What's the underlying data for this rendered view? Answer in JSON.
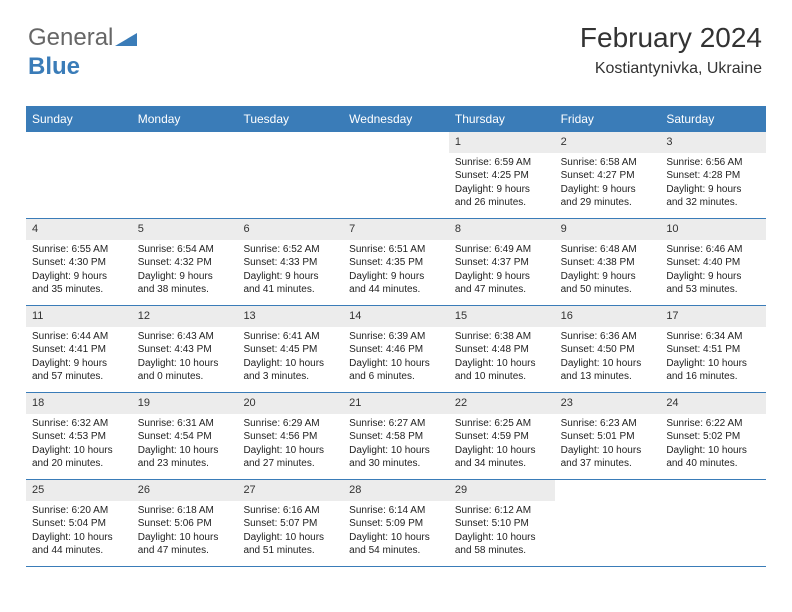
{
  "logo": {
    "text1": "General",
    "text2": "Blue"
  },
  "title": "February 2024",
  "location": "Kostiantynivka, Ukraine",
  "colors": {
    "header_bg": "#3a7cb8",
    "header_text": "#ffffff",
    "daynum_bg": "#ececec",
    "border": "#3a7cb8",
    "text": "#222222",
    "page_bg": "#ffffff"
  },
  "day_names": [
    "Sunday",
    "Monday",
    "Tuesday",
    "Wednesday",
    "Thursday",
    "Friday",
    "Saturday"
  ],
  "weeks": [
    [
      null,
      null,
      null,
      null,
      {
        "n": "1",
        "sr": "Sunrise: 6:59 AM",
        "ss": "Sunset: 4:25 PM",
        "d1": "Daylight: 9 hours",
        "d2": "and 26 minutes."
      },
      {
        "n": "2",
        "sr": "Sunrise: 6:58 AM",
        "ss": "Sunset: 4:27 PM",
        "d1": "Daylight: 9 hours",
        "d2": "and 29 minutes."
      },
      {
        "n": "3",
        "sr": "Sunrise: 6:56 AM",
        "ss": "Sunset: 4:28 PM",
        "d1": "Daylight: 9 hours",
        "d2": "and 32 minutes."
      }
    ],
    [
      {
        "n": "4",
        "sr": "Sunrise: 6:55 AM",
        "ss": "Sunset: 4:30 PM",
        "d1": "Daylight: 9 hours",
        "d2": "and 35 minutes."
      },
      {
        "n": "5",
        "sr": "Sunrise: 6:54 AM",
        "ss": "Sunset: 4:32 PM",
        "d1": "Daylight: 9 hours",
        "d2": "and 38 minutes."
      },
      {
        "n": "6",
        "sr": "Sunrise: 6:52 AM",
        "ss": "Sunset: 4:33 PM",
        "d1": "Daylight: 9 hours",
        "d2": "and 41 minutes."
      },
      {
        "n": "7",
        "sr": "Sunrise: 6:51 AM",
        "ss": "Sunset: 4:35 PM",
        "d1": "Daylight: 9 hours",
        "d2": "and 44 minutes."
      },
      {
        "n": "8",
        "sr": "Sunrise: 6:49 AM",
        "ss": "Sunset: 4:37 PM",
        "d1": "Daylight: 9 hours",
        "d2": "and 47 minutes."
      },
      {
        "n": "9",
        "sr": "Sunrise: 6:48 AM",
        "ss": "Sunset: 4:38 PM",
        "d1": "Daylight: 9 hours",
        "d2": "and 50 minutes."
      },
      {
        "n": "10",
        "sr": "Sunrise: 6:46 AM",
        "ss": "Sunset: 4:40 PM",
        "d1": "Daylight: 9 hours",
        "d2": "and 53 minutes."
      }
    ],
    [
      {
        "n": "11",
        "sr": "Sunrise: 6:44 AM",
        "ss": "Sunset: 4:41 PM",
        "d1": "Daylight: 9 hours",
        "d2": "and 57 minutes."
      },
      {
        "n": "12",
        "sr": "Sunrise: 6:43 AM",
        "ss": "Sunset: 4:43 PM",
        "d1": "Daylight: 10 hours",
        "d2": "and 0 minutes."
      },
      {
        "n": "13",
        "sr": "Sunrise: 6:41 AM",
        "ss": "Sunset: 4:45 PM",
        "d1": "Daylight: 10 hours",
        "d2": "and 3 minutes."
      },
      {
        "n": "14",
        "sr": "Sunrise: 6:39 AM",
        "ss": "Sunset: 4:46 PM",
        "d1": "Daylight: 10 hours",
        "d2": "and 6 minutes."
      },
      {
        "n": "15",
        "sr": "Sunrise: 6:38 AM",
        "ss": "Sunset: 4:48 PM",
        "d1": "Daylight: 10 hours",
        "d2": "and 10 minutes."
      },
      {
        "n": "16",
        "sr": "Sunrise: 6:36 AM",
        "ss": "Sunset: 4:50 PM",
        "d1": "Daylight: 10 hours",
        "d2": "and 13 minutes."
      },
      {
        "n": "17",
        "sr": "Sunrise: 6:34 AM",
        "ss": "Sunset: 4:51 PM",
        "d1": "Daylight: 10 hours",
        "d2": "and 16 minutes."
      }
    ],
    [
      {
        "n": "18",
        "sr": "Sunrise: 6:32 AM",
        "ss": "Sunset: 4:53 PM",
        "d1": "Daylight: 10 hours",
        "d2": "and 20 minutes."
      },
      {
        "n": "19",
        "sr": "Sunrise: 6:31 AM",
        "ss": "Sunset: 4:54 PM",
        "d1": "Daylight: 10 hours",
        "d2": "and 23 minutes."
      },
      {
        "n": "20",
        "sr": "Sunrise: 6:29 AM",
        "ss": "Sunset: 4:56 PM",
        "d1": "Daylight: 10 hours",
        "d2": "and 27 minutes."
      },
      {
        "n": "21",
        "sr": "Sunrise: 6:27 AM",
        "ss": "Sunset: 4:58 PM",
        "d1": "Daylight: 10 hours",
        "d2": "and 30 minutes."
      },
      {
        "n": "22",
        "sr": "Sunrise: 6:25 AM",
        "ss": "Sunset: 4:59 PM",
        "d1": "Daylight: 10 hours",
        "d2": "and 34 minutes."
      },
      {
        "n": "23",
        "sr": "Sunrise: 6:23 AM",
        "ss": "Sunset: 5:01 PM",
        "d1": "Daylight: 10 hours",
        "d2": "and 37 minutes."
      },
      {
        "n": "24",
        "sr": "Sunrise: 6:22 AM",
        "ss": "Sunset: 5:02 PM",
        "d1": "Daylight: 10 hours",
        "d2": "and 40 minutes."
      }
    ],
    [
      {
        "n": "25",
        "sr": "Sunrise: 6:20 AM",
        "ss": "Sunset: 5:04 PM",
        "d1": "Daylight: 10 hours",
        "d2": "and 44 minutes."
      },
      {
        "n": "26",
        "sr": "Sunrise: 6:18 AM",
        "ss": "Sunset: 5:06 PM",
        "d1": "Daylight: 10 hours",
        "d2": "and 47 minutes."
      },
      {
        "n": "27",
        "sr": "Sunrise: 6:16 AM",
        "ss": "Sunset: 5:07 PM",
        "d1": "Daylight: 10 hours",
        "d2": "and 51 minutes."
      },
      {
        "n": "28",
        "sr": "Sunrise: 6:14 AM",
        "ss": "Sunset: 5:09 PM",
        "d1": "Daylight: 10 hours",
        "d2": "and 54 minutes."
      },
      {
        "n": "29",
        "sr": "Sunrise: 6:12 AM",
        "ss": "Sunset: 5:10 PM",
        "d1": "Daylight: 10 hours",
        "d2": "and 58 minutes."
      },
      null,
      null
    ]
  ]
}
